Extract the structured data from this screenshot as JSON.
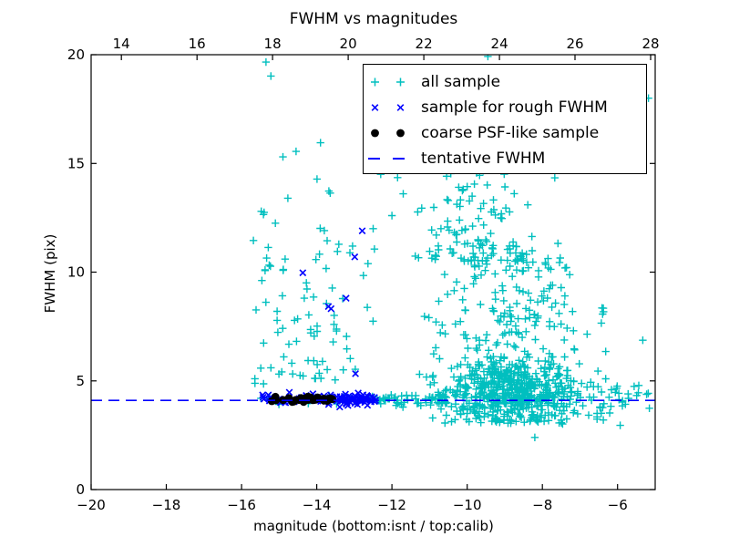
{
  "colors": {
    "axis": "#000000",
    "background": "#ffffff"
  },
  "legend": {
    "position": "upper right"
  },
  "chart_data": {
    "type": "scatter",
    "title": "FWHM vs magnitudes",
    "xlabel": "magnitude (bottom:isnt / top:calib)",
    "ylabel": "FWHM (pix)",
    "x_bottom_axis": {
      "name": "isnt magnitude",
      "range": [
        -20,
        -5
      ],
      "ticks": [
        -20,
        -18,
        -16,
        -14,
        -12,
        -10,
        -8,
        -6
      ]
    },
    "x_top_axis": {
      "name": "calib magnitude",
      "range": [
        13.2,
        28.12
      ],
      "ticks": [
        14,
        16,
        18,
        20,
        22,
        24,
        26,
        28
      ]
    },
    "y_axis": {
      "range": [
        0,
        20
      ],
      "ticks": [
        0,
        5,
        10,
        15,
        20
      ]
    },
    "grid": false,
    "tentative_fwhm": 4.1,
    "series": [
      {
        "name": "all sample",
        "marker": "plus",
        "color": "#00bfbf",
        "clusters": [
          {
            "n": 420,
            "mag": [
              "g",
              -8.75,
              0.95,
              -11.4,
              -5.9
            ],
            "fwhm": [
              "g",
              4.4,
              0.75,
              3.05,
              6.6
            ]
          },
          {
            "n": 330,
            "mag": [
              "g",
              -8.9,
              1.0,
              -11.4,
              -6.0
            ],
            "fwhm": [
              "p",
              4.2,
              11.3,
              1.9
            ]
          },
          {
            "n": 120,
            "mag": [
              "g",
              -9.6,
              0.95,
              -11.6,
              -6.9
            ],
            "fwhm": [
              "p",
              10.5,
              16.3,
              1.8
            ]
          },
          {
            "n": 55,
            "mag": [
              "g",
              -8.6,
              1.1,
              -11.0,
              -6.2
            ],
            "fwhm": [
              "u",
              3.0,
              3.85
            ]
          },
          {
            "n": 26,
            "mag": [
              "u",
              -6.7,
              -5.15
            ],
            "fwhm": [
              "g",
              4.25,
              0.45,
              3.4,
              5.6
            ]
          },
          {
            "n": 6,
            "mag": [
              "u",
              -6.6,
              -5.3
            ],
            "fwhm": [
              "u",
              6.2,
              9.0
            ]
          },
          {
            "n": 14,
            "mag": [
              "g",
              -15.45,
              0.15,
              -15.8,
              -15.1
            ],
            "fwhm": [
              "u",
              4.4,
              13.0
            ]
          },
          {
            "n": 40,
            "mag": [
              "u",
              -15.25,
              -13.2
            ],
            "fwhm": [
              "p",
              5.0,
              9.6,
              1.5
            ]
          },
          {
            "n": 22,
            "mag": [
              "u",
              -15.5,
              -12.3
            ],
            "fwhm": [
              "u",
              9.5,
              14.8
            ]
          },
          {
            "n": 12,
            "mag": [
              "u",
              -14.3,
              -12.3
            ],
            "fwhm": [
              "u",
              5.0,
              8.5
            ]
          },
          {
            "n": 22,
            "mag": [
              "u",
              -15.5,
              -12.1
            ],
            "fwhm": [
              "g",
              4.15,
              0.12,
              3.9,
              4.45
            ]
          },
          {
            "n": 48,
            "mag": [
              "u",
              -12.65,
              -10.55
            ],
            "fwhm": [
              "g",
              4.12,
              0.14,
              3.7,
              4.5
            ]
          }
        ],
        "notable_points": [
          [
            -15.35,
            19.66
          ],
          [
            -15.22,
            19.02
          ],
          [
            -9.45,
            19.92
          ],
          [
            -5.18,
            18.0
          ],
          [
            -14.9,
            15.3
          ],
          [
            -14.55,
            15.55
          ],
          [
            -13.9,
            15.95
          ],
          [
            -15.4,
            12.75
          ],
          [
            -15.1,
            12.25
          ],
          [
            -12.3,
            14.5
          ],
          [
            -11.85,
            14.35
          ],
          [
            -12.5,
            12.0
          ],
          [
            -12.0,
            12.6
          ],
          [
            -11.7,
            13.6
          ],
          [
            -13.45,
            10.95
          ],
          [
            -8.2,
            2.4
          ],
          [
            -5.93,
            2.95
          ]
        ]
      },
      {
        "name": "sample for rough FWHM",
        "marker": "cross",
        "color": "#0000ff",
        "clusters": [
          {
            "n": 42,
            "mag": [
              "u",
              -15.45,
              -13.45
            ],
            "fwhm": [
              "g",
              4.18,
              0.1,
              3.95,
              4.45
            ]
          },
          {
            "n": 60,
            "mag": [
              "g",
              -13.0,
              0.33,
              -13.8,
              -12.42
            ],
            "fwhm": [
              "g",
              4.13,
              0.13,
              3.75,
              4.5
            ]
          }
        ],
        "notable_points": [
          [
            -14.37,
            9.97
          ],
          [
            -12.79,
            11.9
          ],
          [
            -12.99,
            10.7
          ],
          [
            -13.22,
            8.8
          ],
          [
            -13.69,
            8.42
          ],
          [
            -13.62,
            8.32
          ],
          [
            -12.97,
            5.33
          ],
          [
            -15.44,
            4.35
          ],
          [
            -14.73,
            4.47
          ],
          [
            -13.39,
            3.8
          ]
        ]
      },
      {
        "name": "coarse PSF-like sample",
        "marker": "dot",
        "color": "#000000",
        "clusters": [
          {
            "n": 30,
            "mag": [
              "u",
              -15.22,
              -13.58
            ],
            "fwhm": [
              "g",
              4.12,
              0.07,
              3.98,
              4.28
            ]
          }
        ],
        "notable_points": []
      },
      {
        "name": "tentative FWHM",
        "marker": "dashed-line",
        "color": "#0000ff",
        "y": 4.1
      }
    ]
  }
}
